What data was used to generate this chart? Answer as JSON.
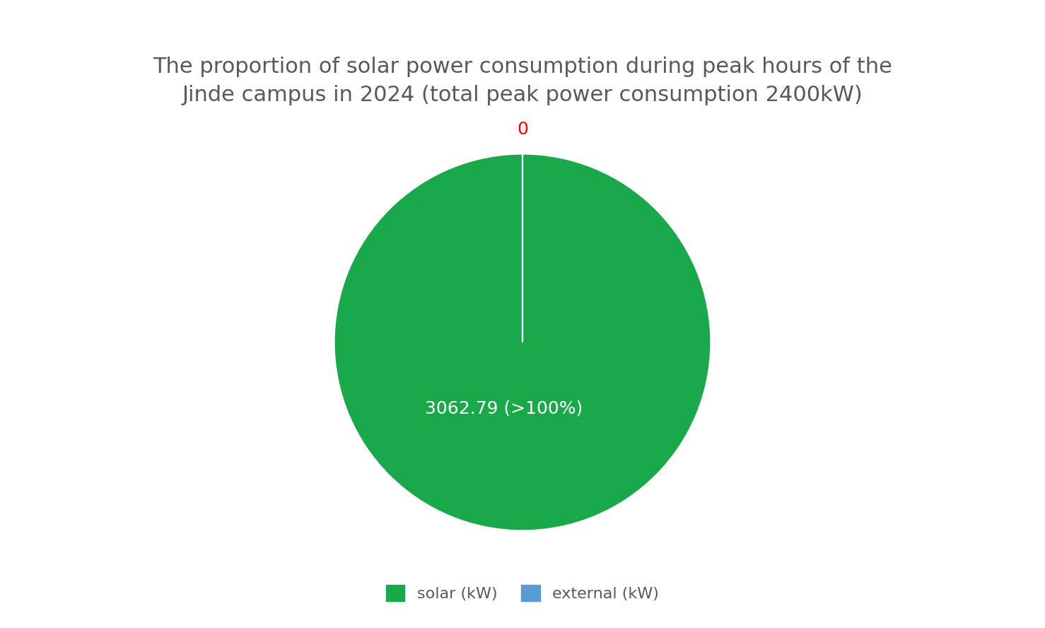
{
  "title": "The proportion of solar power consumption during peak hours of the\nJinde campus in 2024 (total peak power consumption 2400kW)",
  "solar_value": 3062.79,
  "external_value": 0,
  "solar_label": "3062.79 (>100%)",
  "external_label": "0",
  "solar_color": "#19A84A",
  "external_color": "#5B9BD5",
  "legend_solar": "solar (kW)",
  "legend_external": "external (kW)",
  "title_color": "#595959",
  "title_fontsize": 22,
  "label_fontsize": 18,
  "legend_fontsize": 16,
  "background_color": "#ffffff"
}
